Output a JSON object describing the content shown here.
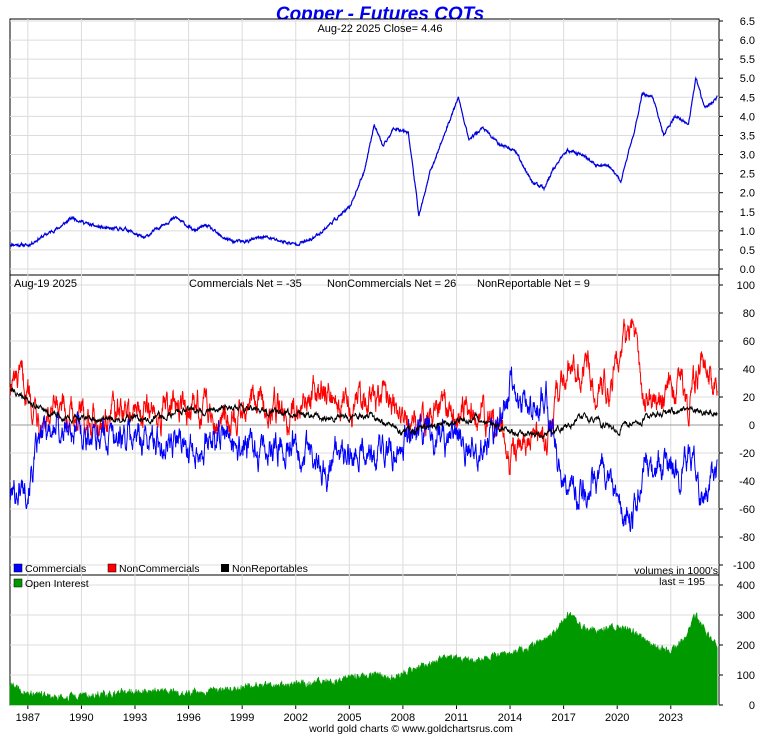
{
  "title": "Copper - Futures COTs",
  "footer": "world gold charts © www.goldchartsrus.com",
  "colors": {
    "price": "#0000dd",
    "commercials": "#0000ff",
    "noncommercials": "#ff0000",
    "nonreportables": "#000000",
    "open_interest": "#009900",
    "grid": "#dcdcdc"
  },
  "price_panel": {
    "header": "Aug-22  2025   Close= 4.46"
  },
  "cot_panel": {
    "date_label": "Aug-19  2025",
    "commercials_net": "Commercials Net = -35",
    "noncommercials_net": "NonCommercials Net = 26",
    "nonreportable_net": "NonReportable Net = 9",
    "legend": [
      "Commercials",
      "NonCommercials",
      "NonReportables"
    ]
  },
  "oi_panel": {
    "legend": "Open Interest",
    "volumes_note": "volumes in 1000's",
    "last": "last = 195"
  },
  "chart_data": [
    {
      "type": "line",
      "title": "Copper price",
      "ylim": [
        0,
        6.5
      ],
      "yticks": [
        "0.0",
        "0.5",
        "1.0",
        "1.5",
        "2.0",
        "2.5",
        "3.0",
        "3.5",
        "4.0",
        "4.5",
        "5.0",
        "5.5",
        "6.0",
        "6.5"
      ],
      "series": [
        {
          "x": [
            1986.0,
            1987.0,
            1988.0,
            1988.8,
            1989.5,
            1990.5,
            1991.5,
            1992.5,
            1993.5,
            1994.5,
            1995.3,
            1996.3,
            1997.0,
            1997.8,
            1998.5,
            1999.2,
            2000.2,
            2001.0,
            2001.9,
            2002.8,
            2003.5,
            2004.2,
            2005.0,
            2005.8,
            2006.4,
            2006.9,
            2007.5,
            2008.3,
            2008.9,
            2009.5,
            2010.3,
            2011.1,
            2011.7,
            2012.5,
            2013.3,
            2014.3,
            2015.2,
            2015.9,
            2016.4,
            2017.2,
            2018.1,
            2018.8,
            2019.4,
            2020.2,
            2020.9,
            2021.4,
            2022.0,
            2022.6,
            2023.2,
            2024.0,
            2024.4,
            2024.9,
            2025.6
          ],
          "values": [
            0.65,
            0.62,
            0.9,
            1.1,
            1.35,
            1.15,
            1.05,
            1.05,
            0.8,
            1.15,
            1.35,
            1.0,
            1.15,
            0.85,
            0.72,
            0.72,
            0.85,
            0.75,
            0.65,
            0.75,
            1.0,
            1.3,
            1.6,
            2.5,
            3.8,
            3.2,
            3.7,
            3.6,
            1.4,
            2.5,
            3.5,
            4.5,
            3.4,
            3.7,
            3.3,
            3.1,
            2.3,
            2.1,
            2.6,
            3.1,
            3.0,
            2.7,
            2.75,
            2.3,
            3.5,
            4.6,
            4.5,
            3.5,
            4.0,
            3.8,
            5.0,
            4.2,
            4.5
          ]
        }
      ]
    },
    {
      "type": "line",
      "title": "Net positions",
      "ylim": [
        -100,
        100
      ],
      "yticks": [
        "-100",
        "-80",
        "-60",
        "-40",
        "-20",
        "0",
        "20",
        "40",
        "60",
        "80",
        "100"
      ],
      "series": [
        {
          "name": "Commercials",
          "x": [
            1986.0,
            1987.0,
            1988.0,
            1990.0,
            1992.0,
            1994.0,
            1996.0,
            1998.0,
            2000.0,
            2002.0,
            2003.5,
            2004.5,
            2006.0,
            2007.5,
            2008.5,
            2010.0,
            2011.5,
            2013.0,
            2014.0,
            2015.0,
            2016.0,
            2017.0,
            2018.0,
            2019.0,
            2020.0,
            2020.9,
            2021.5,
            2022.5,
            2023.5,
            2024.0,
            2024.8,
            2025.6
          ],
          "values": [
            -50,
            -40,
            -2,
            -5,
            -8,
            -10,
            -15,
            -10,
            -20,
            -12,
            -35,
            -20,
            -25,
            -15,
            0,
            -8,
            -12,
            -10,
            30,
            10,
            20,
            -40,
            -50,
            -30,
            -50,
            -70,
            -20,
            -30,
            -40,
            -20,
            -50,
            -35
          ]
        },
        {
          "name": "NonCommercials",
          "x": [
            1986.0,
            1987.0,
            1988.0,
            1990.0,
            1992.0,
            1994.0,
            1996.0,
            1998.0,
            2000.0,
            2002.0,
            2003.5,
            2004.5,
            2006.0,
            2007.5,
            2008.5,
            2010.0,
            2011.5,
            2013.0,
            2014.0,
            2015.0,
            2016.0,
            2017.0,
            2018.0,
            2019.0,
            2020.0,
            2020.9,
            2021.5,
            2022.5,
            2023.5,
            2024.0,
            2024.8,
            2025.6
          ],
          "values": [
            30,
            25,
            5,
            5,
            8,
            10,
            12,
            8,
            15,
            10,
            30,
            18,
            20,
            12,
            0,
            6,
            10,
            8,
            -25,
            -5,
            -15,
            35,
            45,
            25,
            40,
            70,
            15,
            20,
            30,
            15,
            45,
            26
          ]
        },
        {
          "name": "NonReportables",
          "x": [
            1986.0,
            1987.0,
            1988.0,
            1990.0,
            1992.0,
            1994.0,
            1996.0,
            1998.0,
            2000.0,
            2002.0,
            2004.0,
            2006.0,
            2008.0,
            2010.0,
            2012.0,
            2014.0,
            2016.0,
            2018.0,
            2020.0,
            2022.0,
            2024.0,
            2025.6
          ],
          "values": [
            25,
            18,
            8,
            5,
            4,
            5,
            10,
            12,
            10,
            8,
            5,
            8,
            -5,
            0,
            5,
            -5,
            -8,
            5,
            -3,
            8,
            10,
            9
          ]
        }
      ]
    },
    {
      "type": "area",
      "title": "Open Interest",
      "ylim": [
        0,
        400
      ],
      "yticks": [
        "0",
        "100",
        "200",
        "300",
        "400"
      ],
      "xticks": [
        "1987",
        "1990",
        "1993",
        "1996",
        "1999",
        "2002",
        "2005",
        "2008",
        "2011",
        "2014",
        "2017",
        "2020",
        "2023"
      ],
      "series": [
        {
          "name": "Open Interest",
          "x": [
            1986.0,
            1987.0,
            1988.0,
            1989.0,
            1990.0,
            1992.0,
            1994.0,
            1996.0,
            1998.0,
            2000.0,
            2002.0,
            2004.0,
            2006.0,
            2007.5,
            2008.5,
            2009.5,
            2010.5,
            2012.0,
            2013.5,
            2015.0,
            2016.5,
            2017.3,
            2018.0,
            2019.0,
            2020.0,
            2021.0,
            2022.0,
            2023.0,
            2023.8,
            2024.4,
            2025.0,
            2025.6
          ],
          "values": [
            70,
            40,
            30,
            25,
            30,
            40,
            50,
            40,
            50,
            65,
            70,
            80,
            100,
            90,
            120,
            140,
            160,
            150,
            170,
            190,
            240,
            310,
            260,
            250,
            260,
            240,
            200,
            180,
            220,
            300,
            240,
            195
          ]
        }
      ]
    }
  ]
}
